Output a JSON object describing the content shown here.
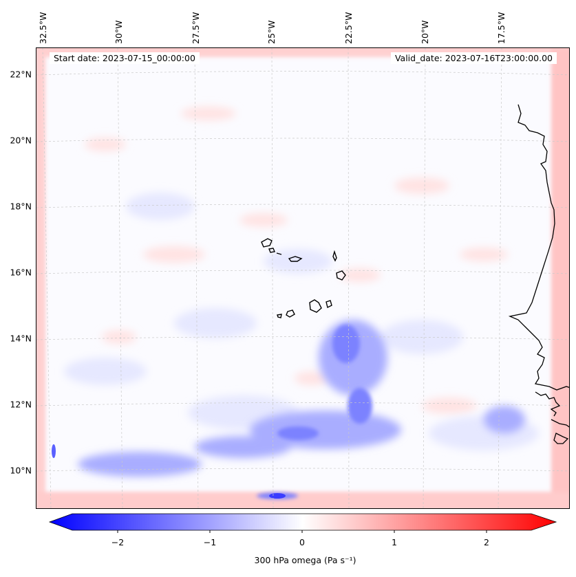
{
  "header": {
    "start_date": "Start date: 2023-07-15_00:00:00",
    "valid_date": "Valid_date: 2023-07-16T23:00:00.00"
  },
  "axes": {
    "lon_labels": [
      "32.5°W",
      "30°W",
      "27.5°W",
      "25°W",
      "22.5°W",
      "20°W",
      "17.5°W"
    ],
    "lat_labels": [
      "22°N",
      "20°N",
      "18°N",
      "16°N",
      "14°N",
      "12°N",
      "10°N"
    ],
    "gridlines": "dashed"
  },
  "map": {
    "variable": "300 hPa omega",
    "region": "Cape Verde / West Africa coast",
    "features": [
      "coastline",
      "cape-verde-islands"
    ],
    "dominant_pattern": "negative omega (blue) band near 10–14°N, weak positive (red) near boundaries"
  },
  "colorbar": {
    "label": "300 hPa omega (Pa s⁻¹)",
    "ticks": [
      "−2",
      "−1",
      "0",
      "1",
      "2"
    ],
    "range": [
      -2.6,
      2.6
    ],
    "extend": "both",
    "colormap": "bwr",
    "colors": {
      "low": "#0000ff",
      "mid": "#ffffff",
      "high": "#ff0000"
    }
  }
}
